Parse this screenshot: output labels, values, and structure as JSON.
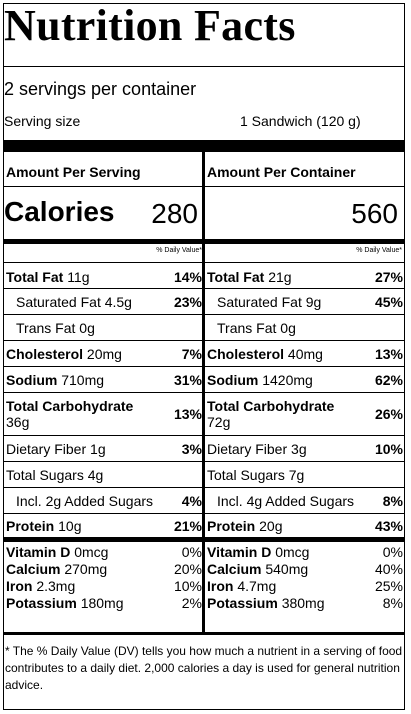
{
  "title": "Nutrition Facts",
  "servings_per_container": "2 servings per container",
  "serving_size_label": "Serving size",
  "serving_size_value": "1 Sandwich (120 g)",
  "headers": {
    "per_serving": "Amount Per Serving",
    "per_container": "Amount Per Container"
  },
  "calories": {
    "label": "Calories",
    "per_serving": "280",
    "per_container": "560"
  },
  "dv_heading": "% Daily Value*",
  "serving": {
    "total_fat": {
      "label": "Total Fat",
      "amount": "11g",
      "pct": "14%"
    },
    "sat_fat": {
      "label": "Saturated Fat",
      "amount": "4.5g",
      "pct": "23%"
    },
    "trans_fat": {
      "label": "Trans Fat",
      "amount": "0g",
      "pct": ""
    },
    "cholesterol": {
      "label": "Cholesterol",
      "amount": "20mg",
      "pct": "7%"
    },
    "sodium": {
      "label": "Sodium",
      "amount": "710mg",
      "pct": "31%"
    },
    "carb": {
      "label": "Total Carbohydrate",
      "amount": "36g",
      "pct": "13%"
    },
    "fiber": {
      "label": "Dietary Fiber",
      "amount": "1g",
      "pct": "3%"
    },
    "sugars": {
      "label": "Total Sugars",
      "amount": "4g",
      "pct": ""
    },
    "added_sugars": {
      "prefix": "Incl.",
      "amount": "2g",
      "label": "Added Sugars",
      "pct": "4%"
    },
    "protein": {
      "label": "Protein",
      "amount": "10g",
      "pct": "21%"
    },
    "vitamin_d": {
      "label": "Vitamin D",
      "amount": "0mcg",
      "pct": "0%"
    },
    "calcium": {
      "label": "Calcium",
      "amount": "270mg",
      "pct": "20%"
    },
    "iron": {
      "label": "Iron",
      "amount": "2.3mg",
      "pct": "10%"
    },
    "potassium": {
      "label": "Potassium",
      "amount": "180mg",
      "pct": "2%"
    }
  },
  "container": {
    "total_fat": {
      "label": "Total Fat",
      "amount": "21g",
      "pct": "27%"
    },
    "sat_fat": {
      "label": "Saturated Fat",
      "amount": "9g",
      "pct": "45%"
    },
    "trans_fat": {
      "label": "Trans Fat",
      "amount": "0g",
      "pct": ""
    },
    "cholesterol": {
      "label": "Cholesterol",
      "amount": "40mg",
      "pct": "13%"
    },
    "sodium": {
      "label": "Sodium",
      "amount": "1420mg",
      "pct": "62%"
    },
    "carb": {
      "label": "Total Carbohydrate",
      "amount": "72g",
      "pct": "26%"
    },
    "fiber": {
      "label": "Dietary Fiber",
      "amount": "3g",
      "pct": "10%"
    },
    "sugars": {
      "label": "Total Sugars",
      "amount": "7g",
      "pct": ""
    },
    "added_sugars": {
      "prefix": "Incl.",
      "amount": "4g",
      "label": "Added Sugars",
      "pct": "8%"
    },
    "protein": {
      "label": "Protein",
      "amount": "20g",
      "pct": "43%"
    },
    "vitamin_d": {
      "label": "Vitamin D",
      "amount": "0mcg",
      "pct": "0%"
    },
    "calcium": {
      "label": "Calcium",
      "amount": "540mg",
      "pct": "40%"
    },
    "iron": {
      "label": "Iron",
      "amount": "4.7mg",
      "pct": "25%"
    },
    "potassium": {
      "label": "Potassium",
      "amount": "380mg",
      "pct": "8%"
    }
  },
  "footnote": "* The % Daily Value (DV) tells you how much a nutrient in a serving of food contributes to a daily diet. 2,000 calories a day is used for general nutrition advice."
}
